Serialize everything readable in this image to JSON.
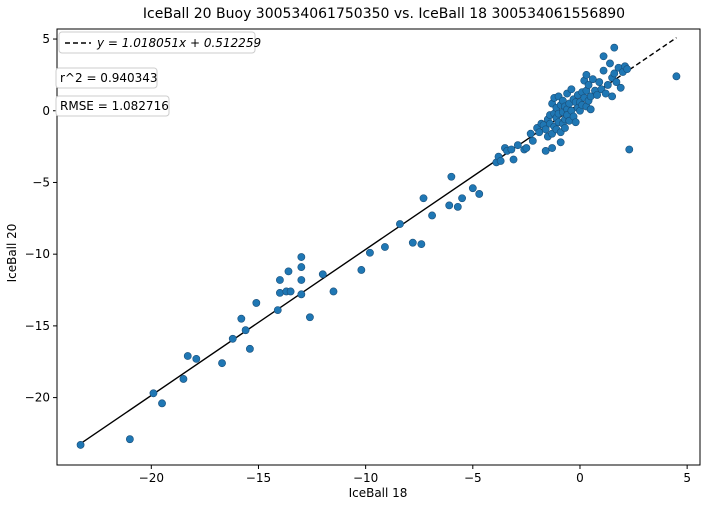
{
  "chart_data": {
    "type": "scatter",
    "title": "IceBall 20 Buoy 300534061750350 vs. IceBall 18 300534061556890",
    "xlabel": "IceBall 18",
    "ylabel": "IceBall 20",
    "xlim": [
      -24.4,
      5.6
    ],
    "ylim": [
      -24.7,
      5.7
    ],
    "xticks": [
      -20,
      -15,
      -10,
      -5,
      0,
      5
    ],
    "yticks": [
      -20,
      -15,
      -10,
      -5,
      0,
      5
    ],
    "xtick_labels": [
      "−20",
      "−15",
      "−10",
      "−5",
      "0",
      "5"
    ],
    "ytick_labels": [
      "−20",
      "−15",
      "−10",
      "−5",
      "0",
      "5"
    ],
    "grid": false,
    "legend_position": "top-left",
    "marker_color": "#1f77b4",
    "marker_edge_color": "#1a4f7a",
    "fit_line": {
      "label": "y = 1.018051x + 0.512259",
      "slope": 1.018051,
      "intercept": 0.512259,
      "x_range": [
        -23.4,
        4.5
      ],
      "solid_until": 1.7,
      "color": "#000000"
    },
    "stats": {
      "r2_text": "r^2 = 0.940343",
      "rmse_text": "RMSE = 1.082716"
    },
    "points": [
      [
        -23.3,
        -23.3
      ],
      [
        -21.0,
        -22.9
      ],
      [
        -19.9,
        -19.7
      ],
      [
        -19.5,
        -20.4
      ],
      [
        -18.5,
        -18.7
      ],
      [
        -18.3,
        -17.1
      ],
      [
        -17.9,
        -17.3
      ],
      [
        -16.7,
        -17.6
      ],
      [
        -16.2,
        -15.9
      ],
      [
        -15.8,
        -14.5
      ],
      [
        -15.6,
        -15.3
      ],
      [
        -15.4,
        -16.6
      ],
      [
        -15.1,
        -13.4
      ],
      [
        -14.1,
        -13.9
      ],
      [
        -14.0,
        -12.7
      ],
      [
        -14.0,
        -11.8
      ],
      [
        -13.7,
        -12.6
      ],
      [
        -13.6,
        -11.2
      ],
      [
        -13.5,
        -12.6
      ],
      [
        -13.0,
        -10.9
      ],
      [
        -13.0,
        -10.2
      ],
      [
        -13.0,
        -11.8
      ],
      [
        -13.0,
        -12.8
      ],
      [
        -12.6,
        -14.4
      ],
      [
        -12.0,
        -11.4
      ],
      [
        -11.5,
        -12.6
      ],
      [
        -10.2,
        -11.1
      ],
      [
        -9.8,
        -9.9
      ],
      [
        -9.1,
        -9.5
      ],
      [
        -8.4,
        -7.9
      ],
      [
        -7.8,
        -9.2
      ],
      [
        -7.4,
        -9.3
      ],
      [
        -7.3,
        -6.1
      ],
      [
        -6.9,
        -7.3
      ],
      [
        -6.1,
        -6.6
      ],
      [
        -6.0,
        -4.6
      ],
      [
        -5.7,
        -6.7
      ],
      [
        -5.5,
        -6.1
      ],
      [
        -5.0,
        -5.4
      ],
      [
        -4.7,
        -5.8
      ],
      [
        -3.9,
        -3.6
      ],
      [
        -3.8,
        -3.2
      ],
      [
        -3.7,
        -3.5
      ],
      [
        -3.5,
        -2.6
      ],
      [
        -3.4,
        -2.8
      ],
      [
        -3.1,
        -3.4
      ],
      [
        -3.2,
        -2.7
      ],
      [
        -2.9,
        -2.4
      ],
      [
        -2.6,
        -2.7
      ],
      [
        -2.5,
        -2.6
      ],
      [
        -2.3,
        -1.6
      ],
      [
        -2.2,
        -2.1
      ],
      [
        -2.0,
        -1.2
      ],
      [
        -1.9,
        -1.5
      ],
      [
        -1.8,
        -0.9
      ],
      [
        -1.7,
        -1.0
      ],
      [
        -1.6,
        -1.3
      ],
      [
        -1.6,
        -2.8
      ],
      [
        -1.5,
        -0.6
      ],
      [
        -1.5,
        -1.8
      ],
      [
        -1.4,
        -0.3
      ],
      [
        -1.4,
        -0.9
      ],
      [
        -1.3,
        -1.6
      ],
      [
        -1.3,
        -2.6
      ],
      [
        -1.3,
        0.5
      ],
      [
        -1.2,
        0.9
      ],
      [
        -1.2,
        -1.1
      ],
      [
        -1.2,
        -0.2
      ],
      [
        -1.1,
        0.2
      ],
      [
        -1.1,
        -0.5
      ],
      [
        -1.1,
        -1.3
      ],
      [
        -1.0,
        1.0
      ],
      [
        -1.0,
        -0.2
      ],
      [
        -1.0,
        -0.8
      ],
      [
        -0.9,
        0.4
      ],
      [
        -0.9,
        -1.5
      ],
      [
        -0.9,
        -2.2
      ],
      [
        -0.8,
        0.7
      ],
      [
        -0.8,
        -0.1
      ],
      [
        -0.8,
        -0.9
      ],
      [
        -0.7,
        0.3
      ],
      [
        -0.7,
        -0.6
      ],
      [
        -0.7,
        -1.2
      ],
      [
        -0.6,
        1.2
      ],
      [
        -0.6,
        0.1
      ],
      [
        -0.6,
        -0.3
      ],
      [
        -0.5,
        0.5
      ],
      [
        -0.5,
        -0.7
      ],
      [
        -0.4,
        1.5
      ],
      [
        -0.4,
        0.0
      ],
      [
        -0.3,
        0.8
      ],
      [
        -0.3,
        -0.4
      ],
      [
        -0.2,
        0.6
      ],
      [
        -0.2,
        -0.8
      ],
      [
        -0.1,
        0.2
      ],
      [
        -0.1,
        1.1
      ],
      [
        0.0,
        0.0
      ],
      [
        0.0,
        0.6
      ],
      [
        0.1,
        1.3
      ],
      [
        0.1,
        0.4
      ],
      [
        0.2,
        0.9
      ],
      [
        0.2,
        2.1
      ],
      [
        0.3,
        0.3
      ],
      [
        0.3,
        1.4
      ],
      [
        0.3,
        2.5
      ],
      [
        0.4,
        0.7
      ],
      [
        0.4,
        1.8
      ],
      [
        0.5,
        1.0
      ],
      [
        0.5,
        0.1
      ],
      [
        0.6,
        2.2
      ],
      [
        0.7,
        1.4
      ],
      [
        0.8,
        1.1
      ],
      [
        0.9,
        2.0
      ],
      [
        1.0,
        1.5
      ],
      [
        1.1,
        2.8
      ],
      [
        1.1,
        3.8
      ],
      [
        1.2,
        1.2
      ],
      [
        1.3,
        1.8
      ],
      [
        1.4,
        3.3
      ],
      [
        1.5,
        2.3
      ],
      [
        1.5,
        1.0
      ],
      [
        1.6,
        4.4
      ],
      [
        1.6,
        2.6
      ],
      [
        1.7,
        2.0
      ],
      [
        1.8,
        3.0
      ],
      [
        1.9,
        1.6
      ],
      [
        2.0,
        2.7
      ],
      [
        2.1,
        3.1
      ],
      [
        2.2,
        2.9
      ],
      [
        2.3,
        -2.7
      ],
      [
        4.5,
        2.4
      ]
    ]
  }
}
